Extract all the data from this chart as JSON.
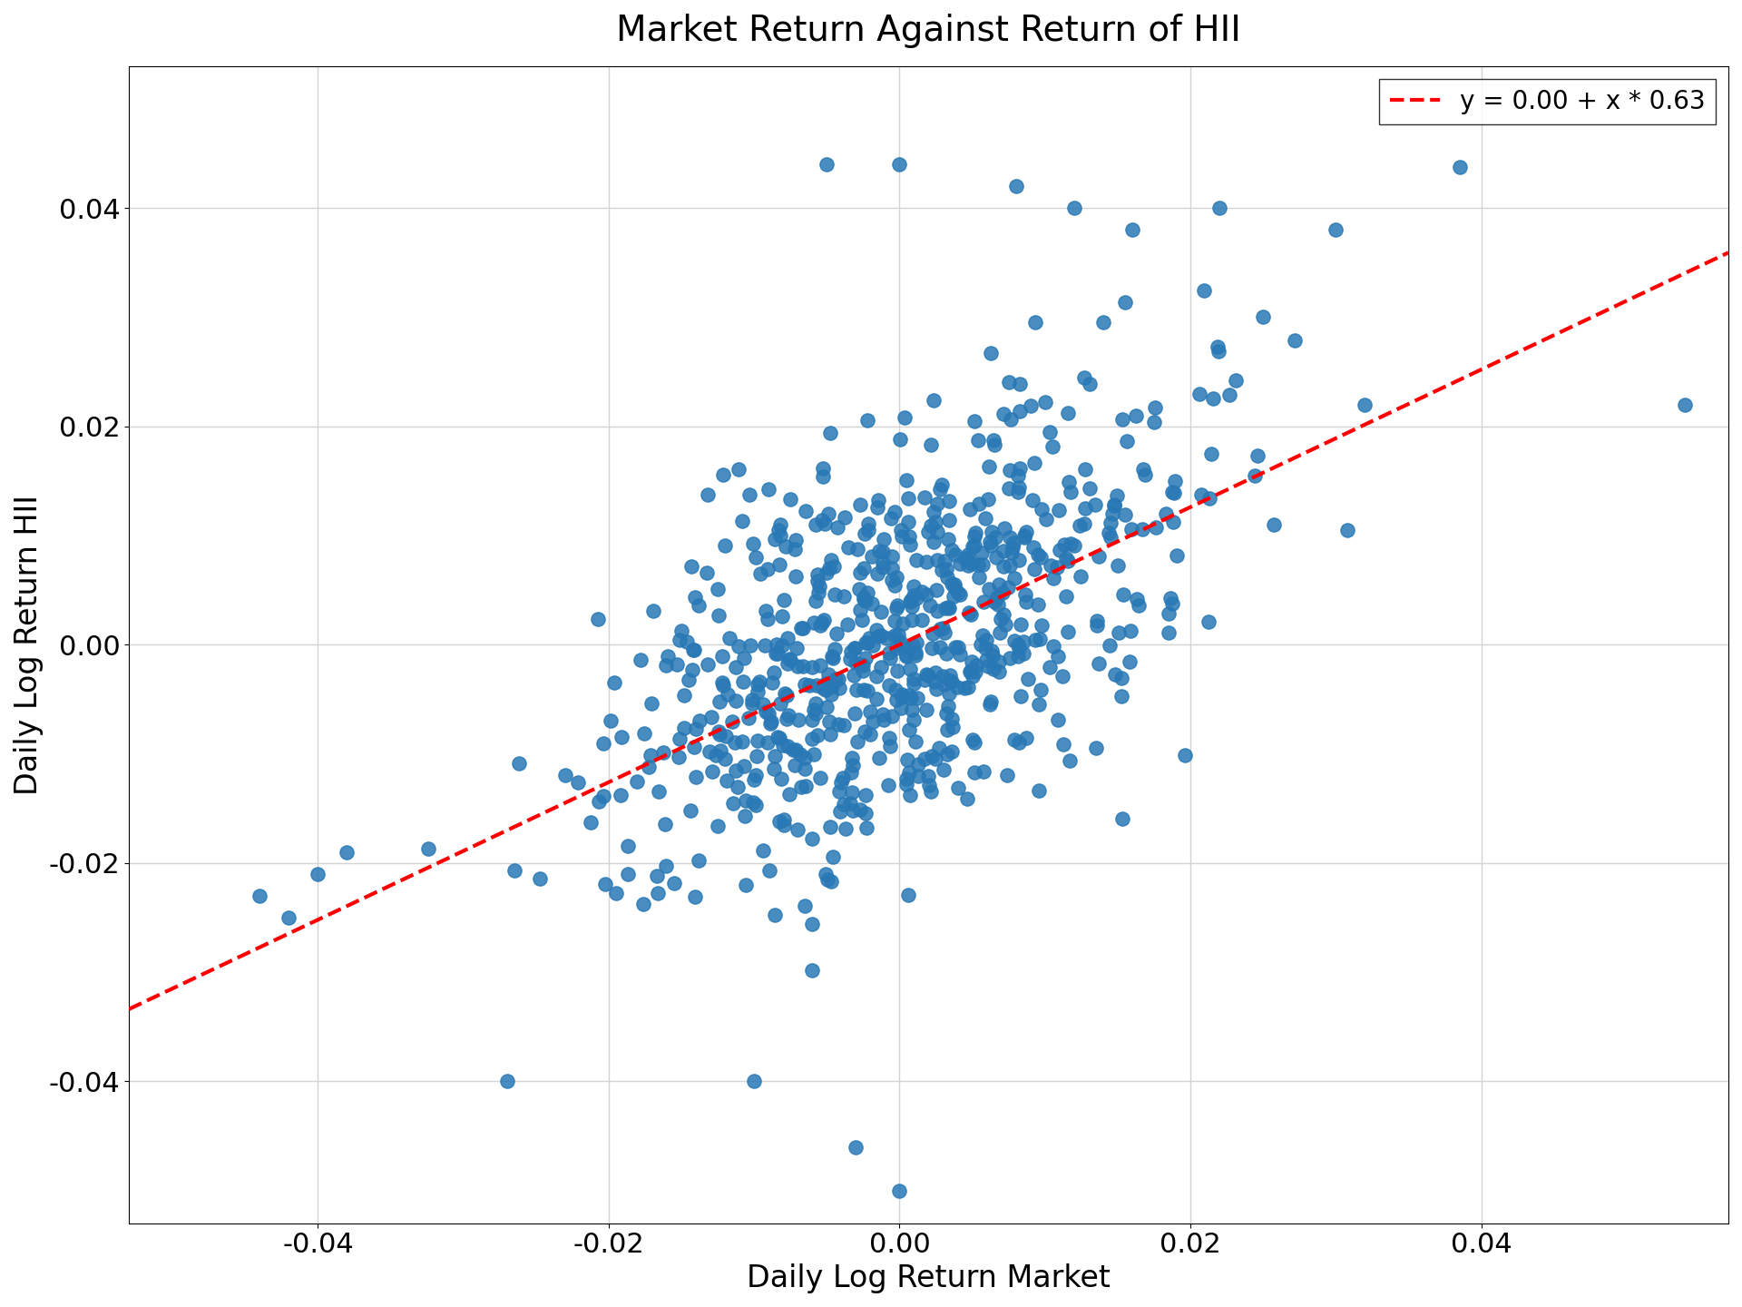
{
  "title": "Market Return Against Return of HII",
  "xlabel": "Daily Log Return Market",
  "ylabel": "Daily Log Return HII",
  "legend_label": "y = 0.00 + x * 0.63",
  "intercept": 0.0,
  "slope": 0.63,
  "xlim": [
    -0.053,
    0.057
  ],
  "ylim": [
    -0.053,
    0.053
  ],
  "xticks": [
    -0.04,
    -0.02,
    0.0,
    0.02,
    0.04
  ],
  "yticks": [
    -0.04,
    -0.02,
    0.0,
    0.02,
    0.04
  ],
  "scatter_color": "#2878b5",
  "line_color": "#ff0000",
  "marker_size": 120,
  "seed": 42,
  "n_points": 700,
  "market_std": 0.01,
  "noise_std": 0.009,
  "title_fontsize": 28,
  "label_fontsize": 24,
  "tick_fontsize": 22,
  "legend_fontsize": 20,
  "figsize": [
    19.2,
    14.4
  ],
  "dpi": 100
}
